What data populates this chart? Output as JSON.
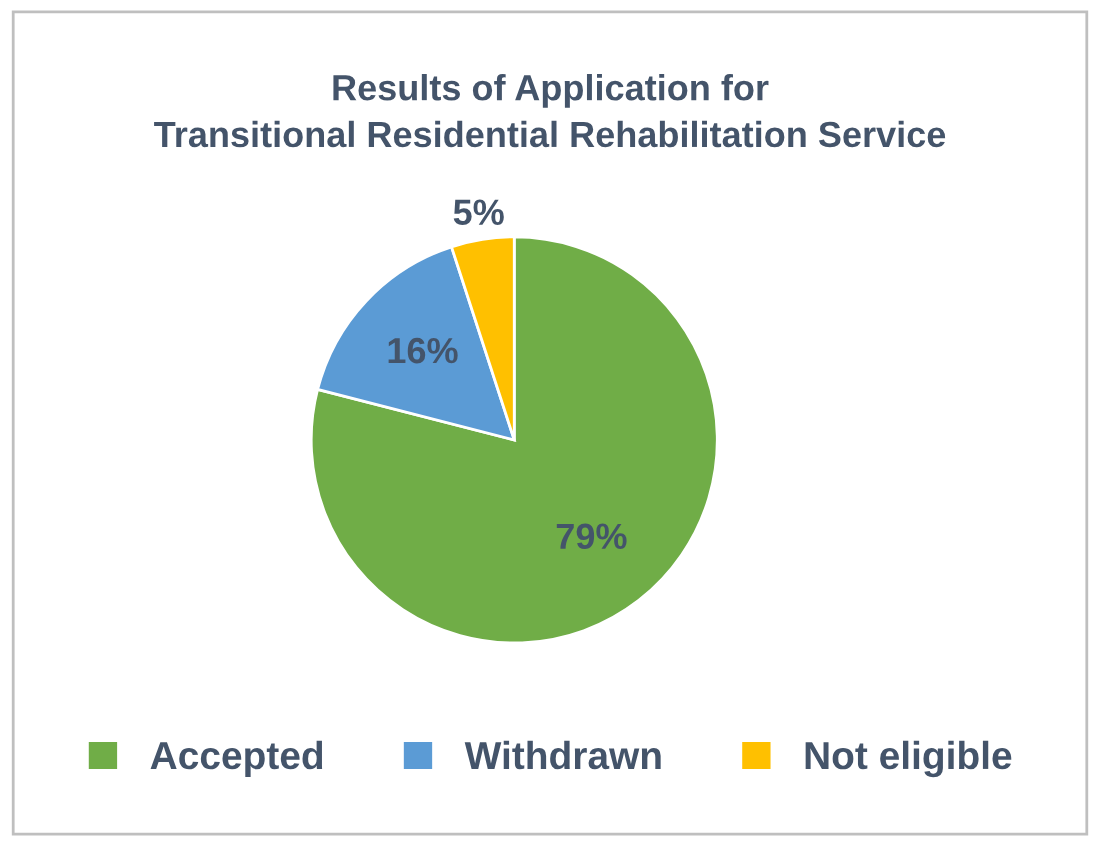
{
  "chart_data": {
    "type": "pie",
    "title": "Results of Application for\nTransitional Residential Rehabilitation Service",
    "categories": [
      "Accepted",
      "Withdrawn",
      "Not eligible"
    ],
    "values": [
      79,
      16,
      5
    ],
    "colors": [
      "#70ad47",
      "#5b9bd5",
      "#ffc000"
    ],
    "value_labels": [
      "79%",
      "16%",
      "5%"
    ],
    "legend": "bottom"
  }
}
